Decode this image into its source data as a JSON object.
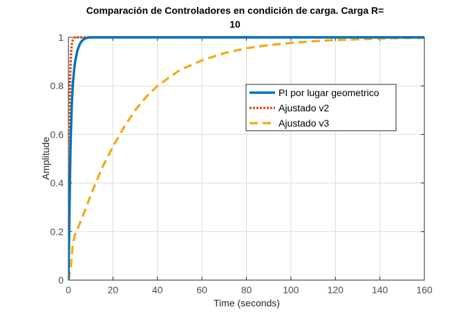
{
  "chart_data": {
    "type": "line",
    "title_lines": [
      "Comparación de Controladores en condición de carga. Carga R=",
      "10"
    ],
    "xlabel": "Time (seconds)",
    "ylabel": "Amplitude",
    "xlim": [
      0,
      160
    ],
    "ylim": [
      0,
      1
    ],
    "xticks": [
      0,
      20,
      40,
      60,
      80,
      100,
      120,
      140,
      160
    ],
    "xtick_labels": [
      "0",
      "20",
      "40",
      "60",
      "80",
      "100",
      "120",
      "140",
      "160"
    ],
    "yticks": [
      0,
      0.2,
      0.4,
      0.6,
      0.8,
      1
    ],
    "ytick_labels": [
      "0",
      "0.2",
      "0.4",
      "0.6",
      "0.8",
      "1"
    ],
    "grid": true,
    "legend_position": "upper-right",
    "series": [
      {
        "name": "PI por lugar geometrico",
        "color": "#0072bd",
        "dash": "solid",
        "x": [
          0,
          0.25,
          0.5,
          0.75,
          1,
          1.5,
          2,
          2.5,
          3,
          4,
          5,
          6,
          7,
          8,
          9,
          10,
          12,
          15,
          20,
          40,
          80,
          160
        ],
        "y": [
          0,
          0.15,
          0.3,
          0.45,
          0.57,
          0.72,
          0.81,
          0.86,
          0.9,
          0.945,
          0.97,
          0.985,
          0.993,
          0.997,
          0.999,
          1,
          1,
          1,
          1,
          1,
          1,
          1
        ]
      },
      {
        "name": "Ajustado v2",
        "color": "#d95319",
        "dash": "dotted",
        "x": [
          0,
          0.2,
          0.4,
          0.6,
          0.8,
          1,
          1.3,
          1.6,
          2,
          2.5,
          3,
          5,
          10,
          40,
          160
        ],
        "y": [
          0,
          0.3,
          0.55,
          0.72,
          0.84,
          0.9,
          0.95,
          0.975,
          0.99,
          0.997,
          1,
          1,
          1,
          1,
          1
        ]
      },
      {
        "name": "Ajustado v3",
        "color": "#edb120",
        "dash": "dashed",
        "x": [
          0,
          1,
          2,
          3,
          5,
          8,
          10,
          15,
          20,
          25,
          30,
          35,
          40,
          50,
          60,
          70,
          80,
          90,
          100,
          110,
          120,
          130,
          140,
          150,
          160
        ],
        "y": [
          0,
          0.05,
          0.15,
          0.19,
          0.23,
          0.3,
          0.35,
          0.46,
          0.55,
          0.63,
          0.7,
          0.755,
          0.8,
          0.865,
          0.905,
          0.935,
          0.955,
          0.968,
          0.977,
          0.984,
          0.989,
          0.992,
          0.995,
          0.997,
          0.998
        ]
      }
    ]
  }
}
